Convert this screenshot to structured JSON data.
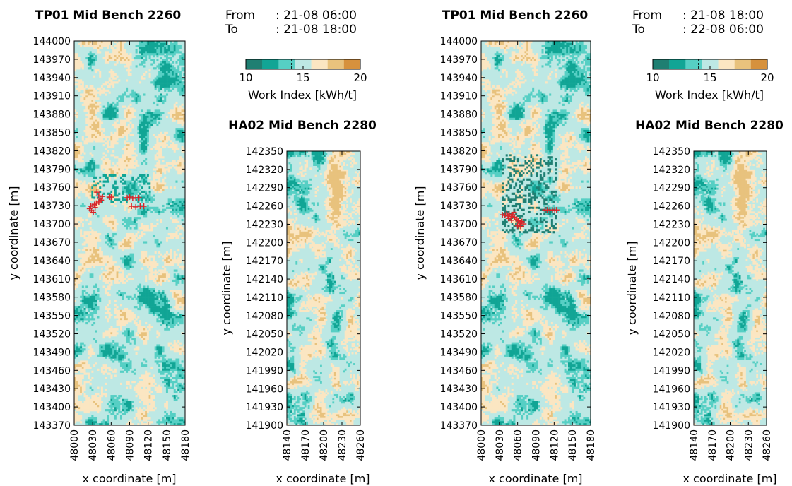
{
  "chart_data": [
    {
      "type": "heatmap",
      "title": "TP01 Mid Bench 2260",
      "xlabel": "x coordinate [m]",
      "ylabel": "y coordinate [m]",
      "xlim": [
        48000,
        48180
      ],
      "ylim": [
        143370,
        144000
      ],
      "x_ticks": [
        "48000",
        "48030",
        "48060",
        "48090",
        "48120",
        "48150",
        "48180"
      ],
      "y_ticks": [
        "144000",
        "143970",
        "143940",
        "143910",
        "143880",
        "143850",
        "143820",
        "143790",
        "143760",
        "143730",
        "143700",
        "143670",
        "143640",
        "143610",
        "143580",
        "143550",
        "143520",
        "143490",
        "143460",
        "143430",
        "143400",
        "143370"
      ],
      "color_variable": "Work Index [kWh/t]",
      "color_range": [
        10,
        20
      ],
      "markers": [
        {
          "x": 48030,
          "y": 143730
        },
        {
          "x": 48033,
          "y": 143732
        },
        {
          "x": 48036,
          "y": 143734
        },
        {
          "x": 48040,
          "y": 143736
        },
        {
          "x": 48044,
          "y": 143739
        },
        {
          "x": 48037,
          "y": 143752
        },
        {
          "x": 48040,
          "y": 143746
        },
        {
          "x": 48042,
          "y": 143742
        },
        {
          "x": 48025,
          "y": 143725
        },
        {
          "x": 48027,
          "y": 143729
        },
        {
          "x": 48028,
          "y": 143722
        },
        {
          "x": 48031,
          "y": 143719
        },
        {
          "x": 48034,
          "y": 143727
        },
        {
          "x": 48046,
          "y": 143745
        },
        {
          "x": 48057,
          "y": 143744
        },
        {
          "x": 48060,
          "y": 143744
        },
        {
          "x": 48086,
          "y": 143743
        },
        {
          "x": 48090,
          "y": 143744
        },
        {
          "x": 48095,
          "y": 143742
        },
        {
          "x": 48100,
          "y": 143743
        },
        {
          "x": 48105,
          "y": 143743
        },
        {
          "x": 48093,
          "y": 143729
        },
        {
          "x": 48100,
          "y": 143728
        },
        {
          "x": 48107,
          "y": 143729
        },
        {
          "x": 48113,
          "y": 143729
        }
      ]
    },
    {
      "type": "heatmap",
      "title": "HA02 Mid Bench 2280",
      "xlabel": "x coordinate [m]",
      "ylabel": "y coordinate [m]",
      "xlim": [
        48140,
        48260
      ],
      "ylim": [
        141900,
        142350
      ],
      "x_ticks": [
        "48140",
        "48170",
        "48200",
        "48230",
        "48260"
      ],
      "y_ticks": [
        "142350",
        "142320",
        "142290",
        "142260",
        "142230",
        "142200",
        "142170",
        "142140",
        "142110",
        "142080",
        "142050",
        "142020",
        "141990",
        "141960",
        "141930",
        "141900"
      ],
      "color_variable": "Work Index [kWh/t]",
      "color_range": [
        10,
        20
      ]
    },
    {
      "type": "heatmap",
      "title": "TP01 Mid Bench 2260",
      "xlabel": "x coordinate [m]",
      "ylabel": "y coordinate [m]",
      "xlim": [
        48000,
        48180
      ],
      "ylim": [
        143370,
        144000
      ],
      "x_ticks": [
        "48000",
        "48030",
        "48060",
        "48090",
        "48120",
        "48150",
        "48180"
      ],
      "y_ticks": [
        "144000",
        "143970",
        "143940",
        "143910",
        "143880",
        "143850",
        "143820",
        "143790",
        "143760",
        "143730",
        "143700",
        "143670",
        "143640",
        "143610",
        "143580",
        "143550",
        "143520",
        "143490",
        "143460",
        "143430",
        "143400",
        "143370"
      ],
      "color_variable": "Work Index [kWh/t]",
      "color_range": [
        10,
        20
      ],
      "markers": [
        {
          "x": 48035,
          "y": 143715
        },
        {
          "x": 48039,
          "y": 143714
        },
        {
          "x": 48043,
          "y": 143713
        },
        {
          "x": 48046,
          "y": 143716
        },
        {
          "x": 48049,
          "y": 143712
        },
        {
          "x": 48052,
          "y": 143715
        },
        {
          "x": 48055,
          "y": 143711
        },
        {
          "x": 48058,
          "y": 143708
        },
        {
          "x": 48061,
          "y": 143705
        },
        {
          "x": 48064,
          "y": 143702
        },
        {
          "x": 48067,
          "y": 143704
        },
        {
          "x": 48070,
          "y": 143700
        },
        {
          "x": 48060,
          "y": 143697
        },
        {
          "x": 48065,
          "y": 143696
        },
        {
          "x": 48050,
          "y": 143706
        },
        {
          "x": 48045,
          "y": 143709
        },
        {
          "x": 48042,
          "y": 143718
        },
        {
          "x": 48054,
          "y": 143719
        },
        {
          "x": 48105,
          "y": 143723
        },
        {
          "x": 48109,
          "y": 143723
        },
        {
          "x": 48113,
          "y": 143723
        },
        {
          "x": 48117,
          "y": 143723
        },
        {
          "x": 48121,
          "y": 143723
        },
        {
          "x": 48124,
          "y": 143723
        }
      ]
    },
    {
      "type": "heatmap",
      "title": "HA02 Mid Bench 2280",
      "xlabel": "x coordinate [m]",
      "ylabel": "y coordinate [m]",
      "xlim": [
        48140,
        48260
      ],
      "ylim": [
        141900,
        142350
      ],
      "x_ticks": [
        "48140",
        "48170",
        "48200",
        "48230",
        "48260"
      ],
      "y_ticks": [
        "142350",
        "142320",
        "142290",
        "142260",
        "142230",
        "142200",
        "142170",
        "142140",
        "142110",
        "142080",
        "142050",
        "142020",
        "141990",
        "141960",
        "141930",
        "141900"
      ],
      "color_variable": "Work Index [kWh/t]",
      "color_range": [
        10,
        20
      ]
    }
  ],
  "periods": [
    {
      "from_label": "From",
      "from_value": ": 21-08 06:00",
      "to_label": "To",
      "to_value": ": 21-08 18:00"
    },
    {
      "from_label": "From",
      "from_value": ": 21-08 18:00",
      "to_label": "To",
      "to_value": ": 22-08 06:00"
    }
  ],
  "colorbar": {
    "label": "Work Index [kWh/t]",
    "ticks": [
      "10",
      "15",
      "20"
    ],
    "range": [
      10,
      20
    ],
    "dashed_marker_value": 14,
    "colors": [
      "#1f7f72",
      "#11a595",
      "#56cfc4",
      "#bde8e4",
      "#fbe6c2",
      "#e8c27d",
      "#d6913d"
    ]
  },
  "marker_color": "#d7262b"
}
